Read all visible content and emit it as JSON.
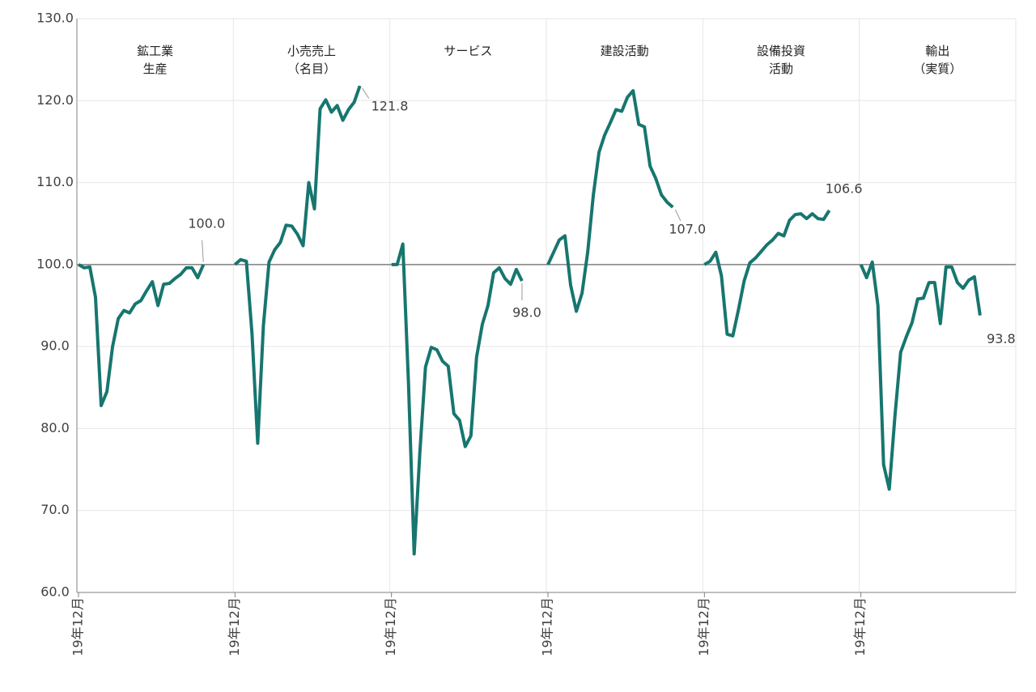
{
  "chart_data": {
    "type": "line",
    "categories": [
      "19年12月",
      null,
      null,
      null,
      null,
      null,
      null,
      null,
      null,
      null,
      null,
      null,
      null,
      null,
      null,
      null,
      null,
      null,
      null,
      null,
      null,
      null,
      null,
      null
    ],
    "ylim": [
      60,
      130
    ],
    "yticks": [
      {
        "value": 60,
        "label": "60.0"
      },
      {
        "value": 70,
        "label": "70.0"
      },
      {
        "value": 80,
        "label": "80.0"
      },
      {
        "value": 90,
        "label": "90.0"
      },
      {
        "value": 100,
        "label": "100.0"
      },
      {
        "value": 110,
        "label": "110.0"
      },
      {
        "value": 120,
        "label": "120.0"
      },
      {
        "value": 130,
        "label": "130.0"
      }
    ],
    "reference_line": 100,
    "grid": true,
    "series": [
      {
        "name": "鉱工業\n生産",
        "color": "#17766f",
        "values": [
          100,
          99.6,
          99.7,
          96,
          82.8,
          84.5,
          90,
          93.4,
          94.4,
          94.1,
          95.2,
          95.6,
          96.8,
          97.9,
          95,
          97.6,
          97.7,
          98.3,
          98.8,
          99.6,
          99.6,
          98.4,
          100.0,
          null
        ],
        "value_labels": [
          null,
          null,
          null,
          null,
          null,
          null,
          null,
          null,
          null,
          null,
          null,
          null,
          null,
          null,
          null,
          null,
          null,
          null,
          null,
          null,
          null,
          null,
          "100.0",
          null
        ]
      },
      {
        "name": "小売売上\n（名目）",
        "color": "#17766f",
        "values": [
          100,
          100.6,
          100.4,
          91.5,
          78.2,
          92.5,
          100.3,
          101.8,
          102.7,
          104.8,
          104.7,
          103.7,
          102.3,
          110,
          106.8,
          119,
          120.1,
          118.6,
          119.4,
          117.6,
          118.9,
          119.8,
          121.8,
          null
        ],
        "value_labels": [
          null,
          null,
          null,
          null,
          null,
          null,
          null,
          null,
          null,
          null,
          null,
          null,
          null,
          null,
          null,
          null,
          null,
          null,
          null,
          null,
          null,
          null,
          "121.8",
          null
        ]
      },
      {
        "name": "サービス",
        "color": "#17766f",
        "values": [
          100,
          100,
          102.5,
          85.5,
          64.7,
          77,
          87.5,
          89.9,
          89.6,
          88.2,
          87.6,
          81.8,
          81,
          77.8,
          79.1,
          88.7,
          92.7,
          95,
          99,
          99.6,
          98.3,
          97.6,
          99.4,
          98.0
        ],
        "value_labels": [
          null,
          null,
          null,
          null,
          null,
          null,
          null,
          null,
          null,
          null,
          null,
          null,
          null,
          null,
          null,
          null,
          null,
          null,
          null,
          null,
          null,
          null,
          null,
          "98.0"
        ]
      },
      {
        "name": "建設活動",
        "color": "#17766f",
        "values": [
          100,
          101.5,
          103,
          103.5,
          97.5,
          94.3,
          96.5,
          101.5,
          108.5,
          113.7,
          115.8,
          117.3,
          118.9,
          118.7,
          120.4,
          121.2,
          117.1,
          116.8,
          112,
          110.5,
          108.5,
          107.6,
          107.0,
          null
        ],
        "value_labels": [
          null,
          null,
          null,
          null,
          null,
          null,
          null,
          null,
          null,
          null,
          null,
          null,
          null,
          null,
          null,
          null,
          null,
          null,
          null,
          null,
          null,
          null,
          "107.0",
          null
        ]
      },
      {
        "name": "設備投資\n活動",
        "color": "#17766f",
        "values": [
          100,
          100.4,
          101.5,
          98.6,
          91.5,
          91.3,
          94.5,
          98,
          100.2,
          100.8,
          101.6,
          102.4,
          103,
          103.8,
          103.5,
          105.4,
          106.1,
          106.2,
          105.6,
          106.2,
          105.6,
          105.5,
          106.6,
          null
        ]
      },
      {
        "name": "輸出\n（実質）",
        "color": "#17766f",
        "values": [
          100,
          98.4,
          100.3,
          95,
          75.6,
          72.6,
          81.5,
          89.3,
          91.2,
          92.9,
          95.8,
          95.9,
          97.8,
          97.8,
          92.8,
          99.7,
          99.7,
          97.8,
          97.1,
          98.1,
          98.5,
          93.8,
          null,
          null
        ]
      }
    ]
  }
}
